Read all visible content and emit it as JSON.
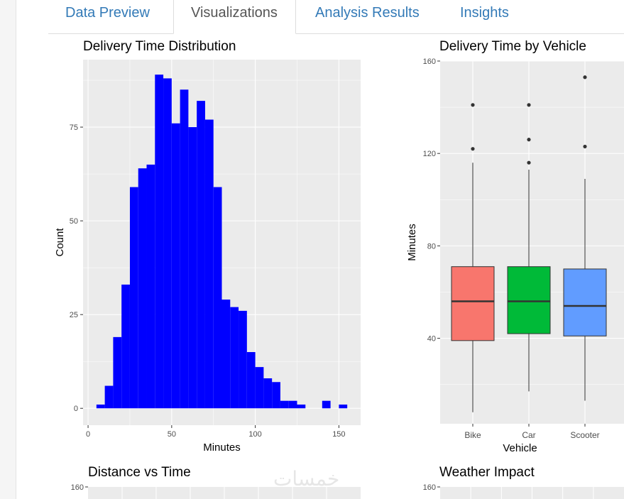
{
  "tabs": [
    {
      "label": "Data Preview",
      "active": false
    },
    {
      "label": "Visualizations",
      "active": true
    },
    {
      "label": "Analysis Results",
      "active": false
    },
    {
      "label": "Insights",
      "active": false
    }
  ],
  "colors": {
    "panel_bg": "#ebebeb",
    "grid": "#ffffff",
    "hist_fill": "#0000ff",
    "bike": "#f8766d",
    "car": "#00ba38",
    "scooter": "#619cff"
  },
  "chart_data": [
    {
      "type": "bar",
      "subtype": "histogram",
      "title": "Delivery Time Distribution",
      "xlabel": "Minutes",
      "ylabel": "Count",
      "xlim": [
        -3,
        163
      ],
      "ylim": [
        -4.5,
        93
      ],
      "xticks": [
        0,
        50,
        100,
        150
      ],
      "yticks": [
        0,
        25,
        50,
        75
      ],
      "bin_width": 5,
      "bin_starts": [
        5,
        10,
        15,
        20,
        25,
        30,
        35,
        40,
        45,
        50,
        55,
        60,
        65,
        70,
        75,
        80,
        85,
        90,
        95,
        100,
        105,
        110,
        115,
        120,
        125,
        130,
        135,
        140,
        145,
        150
      ],
      "values": [
        1,
        6,
        19,
        33,
        59,
        64,
        65,
        89,
        88,
        76,
        85,
        75,
        82,
        77,
        59,
        29,
        27,
        26,
        15,
        11,
        8,
        7,
        2,
        2,
        1,
        0,
        0,
        2,
        0,
        1
      ]
    },
    {
      "type": "boxplot",
      "title": "Delivery Time by Vehicle",
      "xlabel": "Vehicle",
      "ylabel": "Minutes",
      "ylim": [
        3,
        160
      ],
      "yticks": [
        40,
        80,
        120,
        160
      ],
      "categories": [
        "Bike",
        "Car",
        "Scooter"
      ],
      "boxes": [
        {
          "name": "Bike",
          "min": 8,
          "q1": 39,
          "median": 56,
          "q3": 71,
          "max": 116,
          "outliers": [
            122,
            141
          ]
        },
        {
          "name": "Car",
          "min": 17,
          "q1": 42,
          "median": 56,
          "q3": 71,
          "max": 113,
          "outliers": [
            116,
            126,
            141
          ]
        },
        {
          "name": "Scooter",
          "min": 13,
          "q1": 41,
          "median": 54,
          "q3": 70,
          "max": 109,
          "outliers": [
            123,
            153
          ]
        }
      ]
    },
    {
      "type": "scatter",
      "title": "Distance vs Time",
      "yticks": [
        160
      ]
    },
    {
      "type": "bar",
      "title": "Weather Impact",
      "yticks": [
        160
      ]
    }
  ]
}
